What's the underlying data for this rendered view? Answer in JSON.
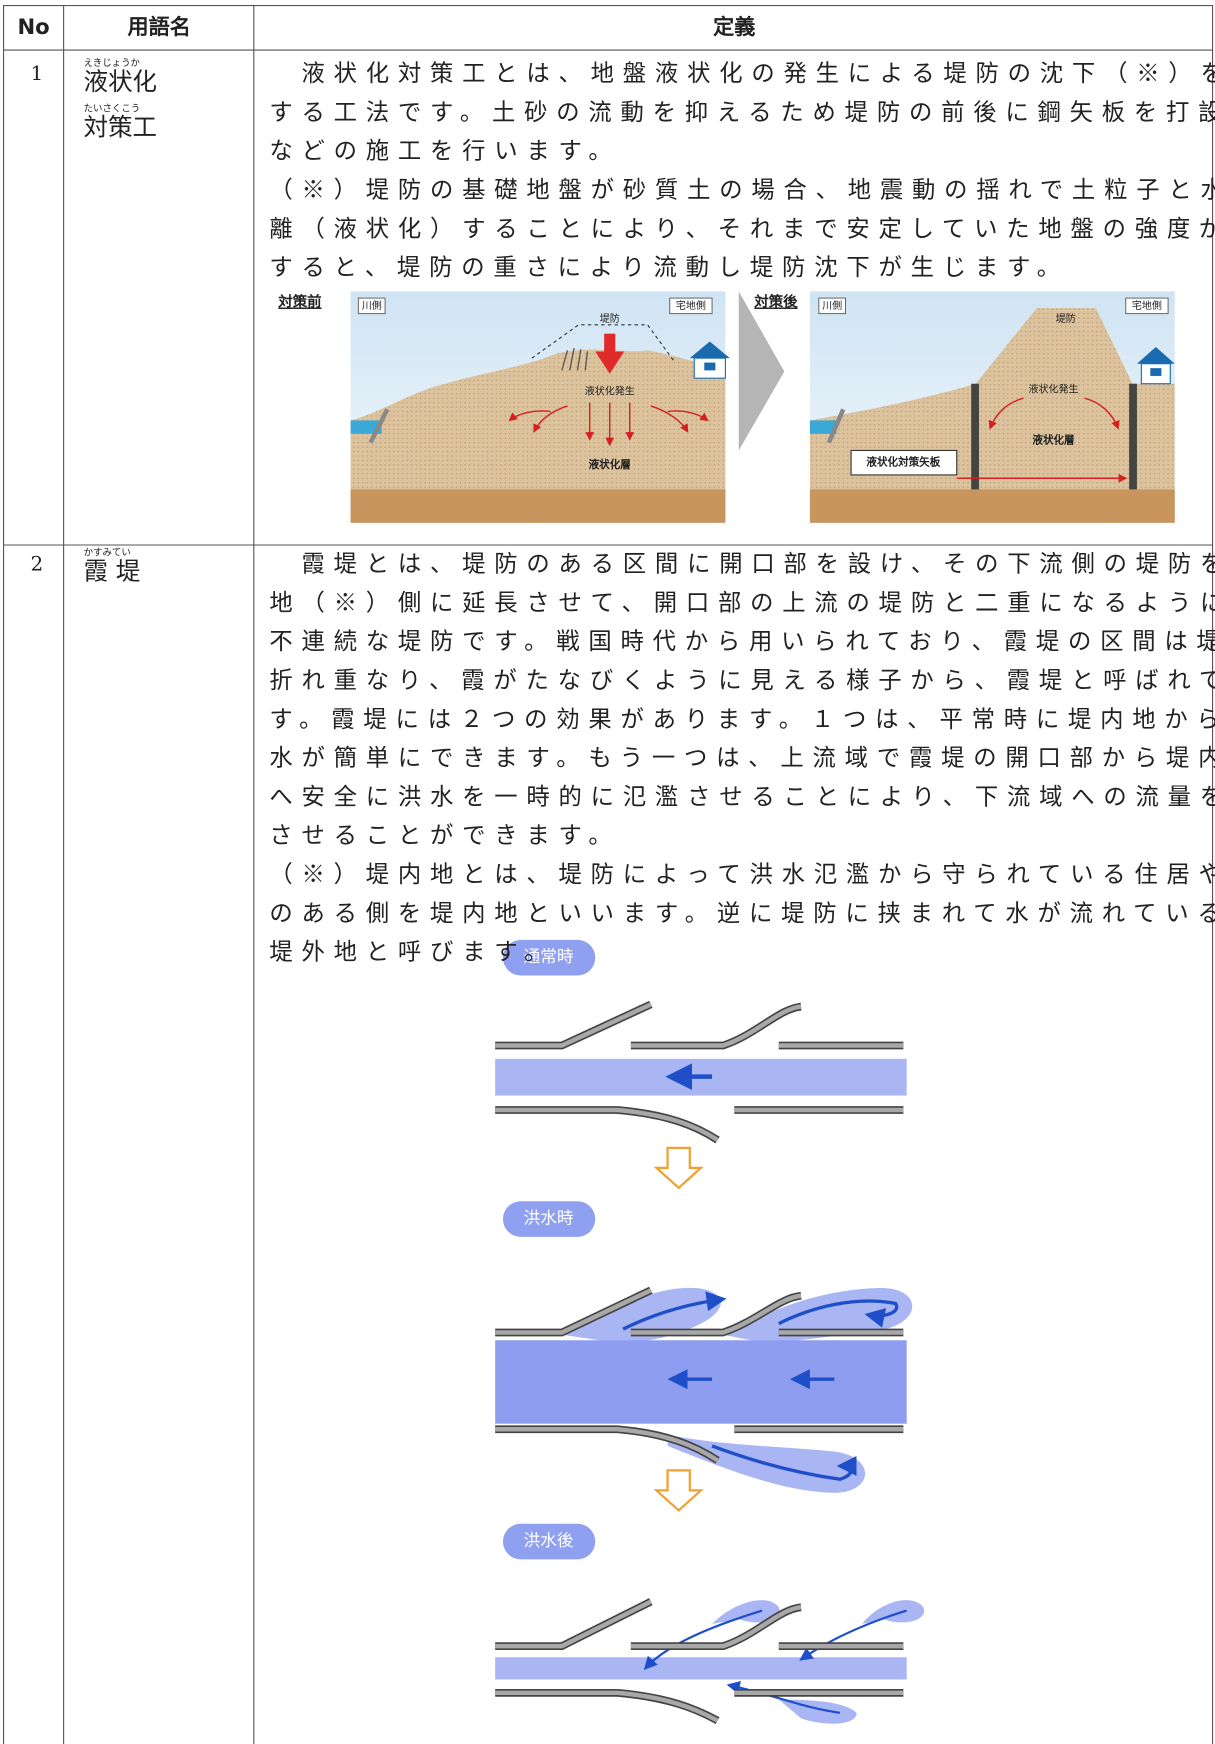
{
  "table": {
    "headers": [
      "No",
      "用語名",
      "定義"
    ],
    "rows": [
      {
        "no": "1",
        "term": [
          {
            "ruby": "えきじょうか",
            "text": "液状化"
          },
          {
            "ruby": "たいさくこう",
            "text": "対策工"
          }
        ],
        "definition": [
          "　液状化対策工とは、地盤液状化の発生による堤防の沈下（※）を防止",
          "する工法です。土砂の流動を抑えるため堤防の前後に鋼矢板を打設する",
          "などの施工を行います。",
          "（※）堤防の基礎地盤が砂質土の場合、地震動の揺れで土粒子と水が分",
          "離（液状化）することにより、それまで安定していた地盤の強度が低下",
          "すると、堤防の重さにより流動し堤防沈下が生じます。"
        ],
        "figure": {
          "before": {
            "label": "対策前",
            "river_side": "川側",
            "levee": "堤防",
            "residential_side": "宅地側",
            "liquefaction": "液状化発生",
            "layer": "液状化層"
          },
          "after": {
            "label": "対策後",
            "river_side": "川側",
            "levee": "堤防",
            "residential_side": "宅地側",
            "liquefaction": "液状化発生",
            "layer": "液状化層",
            "sheet_pile": "液状化対策矢板"
          }
        }
      },
      {
        "no": "2",
        "term": [
          {
            "ruby": "かすみてい",
            "text": "霞 堤"
          }
        ],
        "definition": [
          "　霞堤とは、堤防のある区間に開口部を設け、その下流側の堤防を堤内",
          "地（※）側に延長させて、開口部の上流の堤防と二重になるようにした",
          "不連続な堤防です。戦国時代から用いられており、霞堤の区間は堤防が",
          "折れ重なり、霞がたなびくように見える様子から、霞堤と呼ばれていま",
          "す。霞堤には２つの効果があります。１つは、平常時に堤内地からの排",
          "水が簡単にできます。もう一つは、上流域で霞堤の開口部から堤内地側",
          "へ安全に洪水を一時的に氾濫させることにより、下流域への流量を低減",
          "させることができます。",
          "（※）堤内地とは、堤防によって洪水氾濫から守られている住居や農地",
          "のある側を堤内地といいます。逆に堤防に挟まれて水が流れている側を",
          "堤外地と呼びます。"
        ],
        "figure": {
          "stages": [
            "通常時",
            "洪水時",
            "洪水後"
          ]
        }
      }
    ]
  }
}
